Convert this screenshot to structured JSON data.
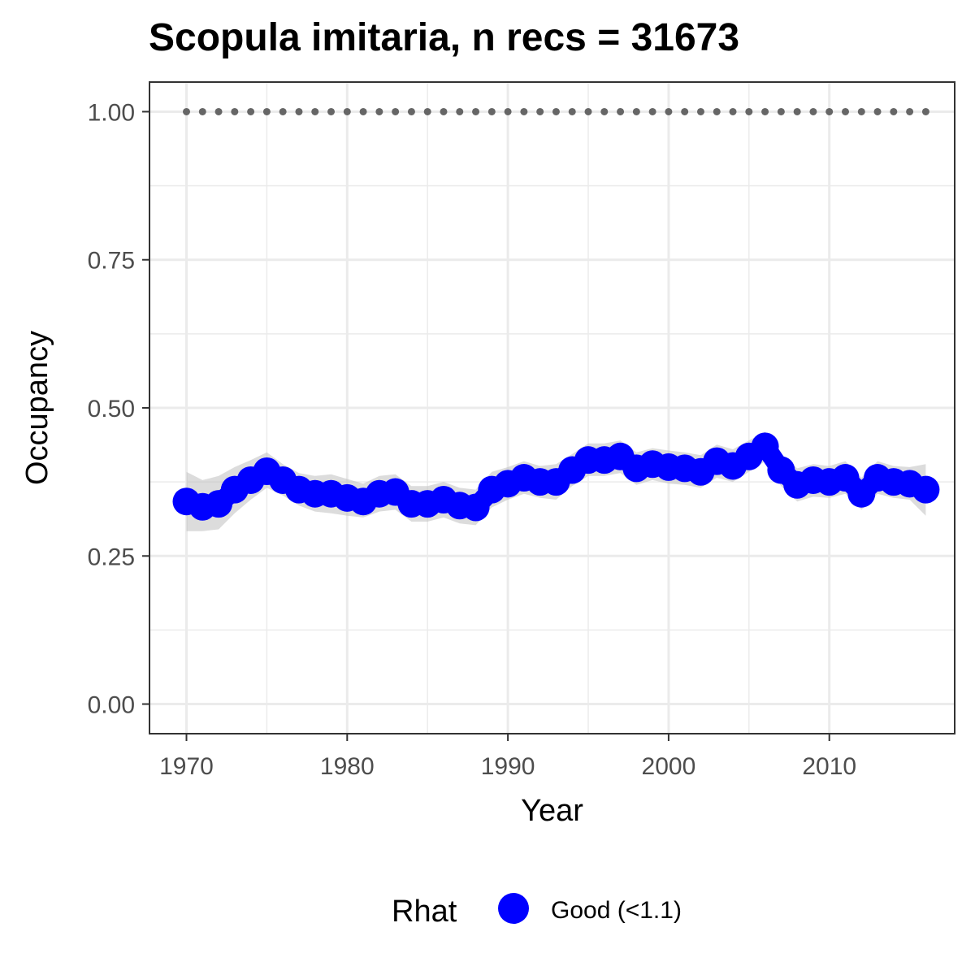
{
  "chart_data": {
    "type": "line",
    "title": "Scopula imitaria, n recs = 31673",
    "xlabel": "Year",
    "ylabel": "Occupancy",
    "xlim": [
      1967.7,
      2017.8
    ],
    "ylim": [
      -0.05,
      1.05
    ],
    "x_ticks": [
      1970,
      1980,
      1990,
      2000,
      2010
    ],
    "x_tick_labels": [
      "1970",
      "1980",
      "1990",
      "2000",
      "2010"
    ],
    "y_ticks": [
      0,
      0.25,
      0.5,
      0.75,
      1.0
    ],
    "y_tick_labels": [
      "0.00",
      "0.25",
      "0.50",
      "0.75",
      "1.00"
    ],
    "grid": true,
    "colors": {
      "series": "#0000ff",
      "ribbon": "#bfbfbf",
      "reference": "#666666",
      "grid": "#ebebeb",
      "panel_border": "#333333"
    },
    "x": [
      1970,
      1971,
      1972,
      1973,
      1974,
      1975,
      1976,
      1977,
      1978,
      1979,
      1980,
      1981,
      1982,
      1983,
      1984,
      1985,
      1986,
      1987,
      1988,
      1989,
      1990,
      1991,
      1992,
      1993,
      1994,
      1995,
      1996,
      1997,
      1998,
      1999,
      2000,
      2001,
      2002,
      2003,
      2004,
      2005,
      2006,
      2007,
      2008,
      2009,
      2010,
      2011,
      2012,
      2013,
      2014,
      2015,
      2016
    ],
    "series": [
      {
        "values": [
          0.342,
          0.333,
          0.338,
          0.362,
          0.378,
          0.393,
          0.378,
          0.362,
          0.355,
          0.355,
          0.348,
          0.342,
          0.355,
          0.358,
          0.338,
          0.338,
          0.345,
          0.335,
          0.332,
          0.362,
          0.372,
          0.382,
          0.375,
          0.375,
          0.395,
          0.412,
          0.412,
          0.418,
          0.398,
          0.405,
          0.4,
          0.398,
          0.392,
          0.41,
          0.402,
          0.418,
          0.435,
          0.395,
          0.37,
          0.378,
          0.375,
          0.382,
          0.355,
          0.382,
          0.375,
          0.372,
          0.362
        ],
        "lower": [
          0.292,
          0.292,
          0.295,
          0.322,
          0.345,
          0.365,
          0.352,
          0.335,
          0.325,
          0.322,
          0.318,
          0.315,
          0.325,
          0.328,
          0.308,
          0.308,
          0.315,
          0.305,
          0.302,
          0.332,
          0.345,
          0.355,
          0.348,
          0.345,
          0.368,
          0.385,
          0.385,
          0.39,
          0.37,
          0.378,
          0.372,
          0.37,
          0.365,
          0.382,
          0.375,
          0.392,
          0.41,
          0.368,
          0.342,
          0.35,
          0.348,
          0.355,
          0.328,
          0.355,
          0.348,
          0.345,
          0.318
        ],
        "upper": [
          0.392,
          0.378,
          0.385,
          0.4,
          0.412,
          0.425,
          0.405,
          0.39,
          0.385,
          0.388,
          0.38,
          0.372,
          0.385,
          0.388,
          0.368,
          0.368,
          0.375,
          0.365,
          0.362,
          0.392,
          0.4,
          0.41,
          0.402,
          0.405,
          0.422,
          0.44,
          0.44,
          0.445,
          0.425,
          0.432,
          0.428,
          0.425,
          0.42,
          0.438,
          0.43,
          0.445,
          0.46,
          0.422,
          0.398,
          0.405,
          0.402,
          0.41,
          0.382,
          0.41,
          0.402,
          0.4,
          0.405
        ]
      }
    ],
    "reference_line": {
      "y": 1.0,
      "x_range": [
        1970,
        2016
      ]
    },
    "legend": {
      "title": "Rhat",
      "entries": [
        {
          "label": "Good (<1.1)",
          "color": "#0000ff"
        }
      ],
      "position": "bottom"
    }
  }
}
